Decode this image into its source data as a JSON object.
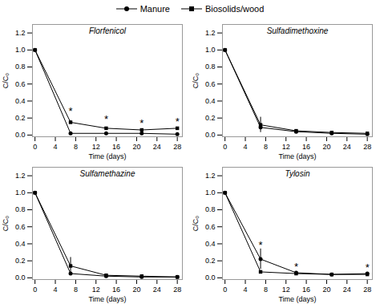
{
  "chart_data": [
    {
      "type": "line",
      "title": "Florfenicol",
      "xlabel": "Time (days)",
      "ylabel": "C/C₀",
      "x": [
        0,
        7,
        14,
        21,
        28
      ],
      "series": [
        {
          "name": "Manure",
          "color": "black",
          "marker": "circle",
          "values": [
            1.0,
            0.02,
            0.02,
            0.02,
            0.01
          ],
          "yerr": [
            0.0,
            0.005,
            0.005,
            0.005,
            0.005
          ]
        },
        {
          "name": "Biosolids/wood",
          "color": "black",
          "marker": "square",
          "values": [
            1.0,
            0.15,
            0.08,
            0.06,
            0.08
          ],
          "yerr": [
            0.0,
            0.02,
            0.01,
            0.01,
            0.01
          ]
        }
      ],
      "annotations": [
        {
          "x": 7,
          "y": 0.28,
          "text": "*"
        },
        {
          "x": 14,
          "y": 0.18,
          "text": "*"
        },
        {
          "x": 21,
          "y": 0.14,
          "text": "*"
        },
        {
          "x": 28,
          "y": 0.16,
          "text": "*"
        }
      ],
      "xlim": [
        -0.5,
        29
      ],
      "xticks": [
        0,
        4,
        8,
        12,
        16,
        20,
        24,
        28
      ],
      "ylim": [
        -0.02,
        1.3
      ],
      "yticks": [
        {
          "value": 0.0,
          "label": "0.0"
        },
        0.2,
        0.4,
        0.6,
        0.8,
        {
          "value": 1.0,
          "label": "1.0"
        },
        1.2
      ],
      "legend": "top"
    },
    {
      "type": "line",
      "title": "Sulfadimethoxine",
      "xlabel": "Time (days)",
      "ylabel": "C/C₀",
      "x": [
        0,
        7,
        14,
        21,
        28
      ],
      "series": [
        {
          "name": "Manure",
          "color": "black",
          "marker": "circle",
          "values": [
            1.0,
            0.09,
            0.04,
            0.02,
            0.01
          ],
          "yerr": [
            0.0,
            0.02,
            0.005,
            0.005,
            0.005
          ]
        },
        {
          "name": "Biosolids/wood",
          "color": "black",
          "marker": "square",
          "values": [
            1.0,
            0.12,
            0.05,
            0.03,
            0.02
          ],
          "yerr": [
            0.0,
            0.09,
            0.01,
            0.005,
            0.005
          ]
        }
      ],
      "annotations": [],
      "xlim": [
        -0.5,
        29
      ],
      "xticks": [
        0,
        4,
        8,
        12,
        16,
        20,
        24,
        28
      ],
      "ylim": [
        -0.02,
        1.3
      ],
      "yticks": [
        {
          "value": 0.0,
          "label": "0.0"
        },
        0.2,
        0.4,
        0.6,
        0.8,
        {
          "value": 1.0,
          "label": "1.0"
        },
        1.2
      ]
    },
    {
      "type": "line",
      "title": "Sulfamethazine",
      "xlabel": "Time (days)",
      "ylabel": "C/C₀",
      "x": [
        0,
        7,
        14,
        21,
        28
      ],
      "series": [
        {
          "name": "Manure",
          "color": "black",
          "marker": "circle",
          "values": [
            1.0,
            0.05,
            0.02,
            0.01,
            0.01
          ],
          "yerr": [
            0.0,
            0.01,
            0.005,
            0.005,
            0.005
          ]
        },
        {
          "name": "Biosolids/wood",
          "color": "black",
          "marker": "square",
          "values": [
            1.0,
            0.14,
            0.03,
            0.02,
            0.01
          ],
          "yerr": [
            0.0,
            0.1,
            0.01,
            0.005,
            0.005
          ]
        }
      ],
      "annotations": [],
      "xlim": [
        -0.5,
        29
      ],
      "xticks": [
        0,
        4,
        8,
        12,
        16,
        20,
        24,
        28
      ],
      "ylim": [
        -0.02,
        1.3
      ],
      "yticks": [
        {
          "value": 0.0,
          "label": "0.0"
        },
        0.2,
        0.4,
        0.6,
        0.8,
        {
          "value": 1.0,
          "label": "1.0"
        },
        1.2
      ]
    },
    {
      "type": "line",
      "title": "Tylosin",
      "xlabel": "Time (days)",
      "ylabel": "C/C₀",
      "x": [
        0,
        7,
        14,
        21,
        28
      ],
      "series": [
        {
          "name": "Manure",
          "color": "black",
          "marker": "circle",
          "values": [
            1.0,
            0.22,
            0.06,
            0.04,
            0.05
          ],
          "yerr": [
            0.0,
            0.12,
            0.01,
            0.01,
            0.01
          ]
        },
        {
          "name": "Biosolids/wood",
          "color": "black",
          "marker": "square",
          "values": [
            1.0,
            0.07,
            0.05,
            0.04,
            0.04
          ],
          "yerr": [
            0.0,
            0.01,
            0.01,
            0.005,
            0.005
          ]
        }
      ],
      "annotations": [
        {
          "x": 7,
          "y": 0.38,
          "text": "*"
        },
        {
          "x": 14,
          "y": 0.13,
          "text": "*"
        },
        {
          "x": 28,
          "y": 0.12,
          "text": "*"
        }
      ],
      "xlim": [
        -0.5,
        29
      ],
      "xticks": [
        0,
        4,
        8,
        12,
        16,
        20,
        24,
        28
      ],
      "ylim": [
        -0.02,
        1.3
      ],
      "yticks": [
        {
          "value": 0.0,
          "label": "0.0"
        },
        0.2,
        0.4,
        0.6,
        0.8,
        {
          "value": 1.0,
          "label": "1.0"
        },
        1.2
      ]
    }
  ]
}
